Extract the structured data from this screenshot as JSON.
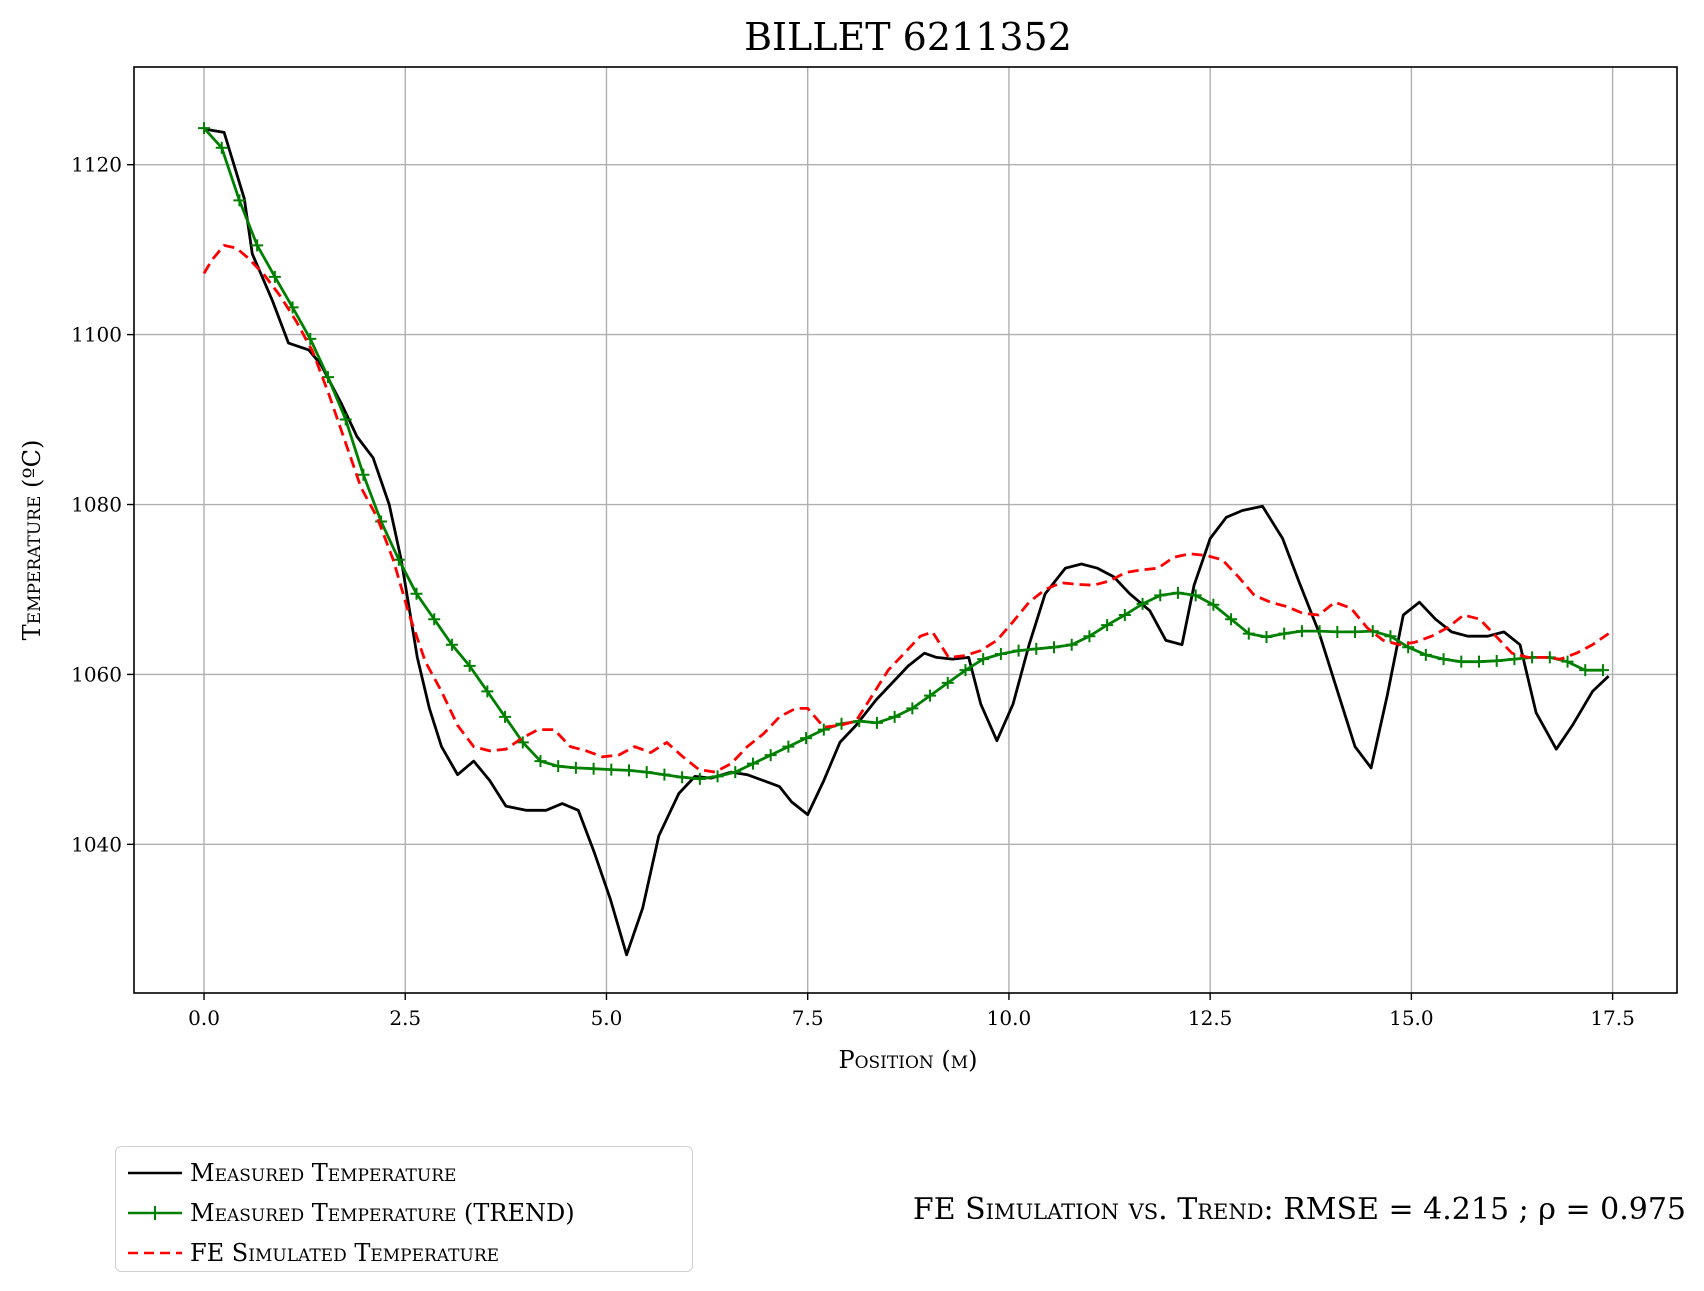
{
  "title": "BILLET 6211352",
  "xlabel": "Position (m)",
  "ylabel": "Temperature (ºC)",
  "stats": {
    "prefix": "FE Simulation vs. Trend:",
    "rmse": "RMSE = 4.215",
    "rho": "; ρ = 0.975"
  },
  "legend": [
    {
      "label": "Measured Temperature",
      "color": "#000000",
      "style": "solid"
    },
    {
      "label": "Measured Temperature (TREND)",
      "color": "#008000",
      "style": "solid-plus"
    },
    {
      "label": "FE Simulated Temperature",
      "color": "#ff0000",
      "style": "dashed"
    }
  ],
  "chart_data": {
    "type": "line",
    "title": "BILLET 6211352",
    "xlabel": "Position (m)",
    "ylabel": "Temperature (ºC)",
    "xlim": [
      -0.87,
      18.3
    ],
    "ylim": [
      1022.5,
      1131.5
    ],
    "xticks": [
      0.0,
      2.5,
      5.0,
      7.5,
      10.0,
      12.5,
      15.0,
      17.5
    ],
    "xtick_labels": [
      "0.0",
      "2.5",
      "5.0",
      "7.5",
      "10.0",
      "12.5",
      "15.0",
      "17.5"
    ],
    "yticks": [
      1040,
      1060,
      1080,
      1100,
      1120
    ],
    "ytick_labels": [
      "1040",
      "1060",
      "1080",
      "1100",
      "1120"
    ],
    "grid": true,
    "legend_position": "below-left",
    "series": [
      {
        "name": "Measured Temperature",
        "color": "#000000",
        "style": "solid",
        "x": [
          0.0,
          0.25,
          0.5,
          0.6,
          0.85,
          1.05,
          1.3,
          1.45,
          1.7,
          1.9,
          2.1,
          2.3,
          2.45,
          2.65,
          2.8,
          2.95,
          3.15,
          3.35,
          3.55,
          3.75,
          4.0,
          4.25,
          4.45,
          4.65,
          4.85,
          5.05,
          5.25,
          5.45,
          5.65,
          5.9,
          6.1,
          6.3,
          6.55,
          6.75,
          6.95,
          7.15,
          7.3,
          7.5,
          7.7,
          7.9,
          8.1,
          8.35,
          8.55,
          8.75,
          8.95,
          9.1,
          9.3,
          9.5,
          9.65,
          9.85,
          10.05,
          10.25,
          10.45,
          10.7,
          10.9,
          11.1,
          11.3,
          11.5,
          11.75,
          11.95,
          12.15,
          12.3,
          12.5,
          12.7,
          12.9,
          13.15,
          13.4,
          13.6,
          13.85,
          14.05,
          14.3,
          14.5,
          14.7,
          14.9,
          15.1,
          15.3,
          15.5,
          15.7,
          15.95,
          16.15,
          16.35,
          16.55,
          16.8,
          17.0,
          17.25,
          17.45
        ],
        "y": [
          1124.2,
          1123.8,
          1116.0,
          1109.5,
          1104.0,
          1099.0,
          1098.2,
          1096.5,
          1092.0,
          1088.0,
          1085.5,
          1080.0,
          1073.5,
          1062.0,
          1056.0,
          1051.5,
          1048.2,
          1049.8,
          1047.5,
          1044.5,
          1044.0,
          1044.0,
          1044.8,
          1044.0,
          1039.0,
          1033.5,
          1027.0,
          1032.5,
          1041.0,
          1046.0,
          1048.0,
          1047.8,
          1048.5,
          1048.2,
          1047.5,
          1046.8,
          1045.0,
          1043.5,
          1047.5,
          1052.0,
          1054.0,
          1057.0,
          1059.0,
          1061.0,
          1062.5,
          1062.0,
          1061.8,
          1062.0,
          1056.5,
          1052.2,
          1056.5,
          1063.5,
          1069.5,
          1072.5,
          1073.0,
          1072.5,
          1071.5,
          1069.5,
          1067.5,
          1064.0,
          1063.5,
          1070.5,
          1076.0,
          1078.5,
          1079.3,
          1079.8,
          1076.0,
          1071.0,
          1065.0,
          1059.0,
          1051.5,
          1049.0,
          1057.5,
          1067.0,
          1068.5,
          1066.5,
          1065.0,
          1064.5,
          1064.5,
          1065.0,
          1063.5,
          1055.5,
          1051.2,
          1054.0,
          1058.0,
          1059.8
        ]
      },
      {
        "name": "Measured Temperature (TREND)",
        "color": "#008000",
        "style": "solid-plus",
        "x": [
          0.0,
          0.22,
          0.44,
          0.66,
          0.88,
          1.1,
          1.32,
          1.54,
          1.76,
          1.98,
          2.2,
          2.42,
          2.64,
          2.86,
          3.08,
          3.3,
          3.52,
          3.74,
          3.96,
          4.18,
          4.4,
          4.62,
          4.84,
          5.06,
          5.28,
          5.5,
          5.72,
          5.94,
          6.16,
          6.38,
          6.6,
          6.82,
          7.04,
          7.26,
          7.48,
          7.7,
          7.92,
          8.14,
          8.36,
          8.58,
          8.8,
          9.02,
          9.24,
          9.46,
          9.68,
          9.9,
          10.12,
          10.34,
          10.56,
          10.78,
          11.0,
          11.22,
          11.44,
          11.66,
          11.88,
          12.1,
          12.32,
          12.54,
          12.76,
          12.98,
          13.2,
          13.42,
          13.64,
          13.86,
          14.08,
          14.3,
          14.52,
          14.74,
          14.96,
          15.18,
          15.4,
          15.62,
          15.84,
          16.06,
          16.28,
          16.5,
          16.72,
          16.94,
          17.16,
          17.38
        ],
        "y": [
          1124.3,
          1122.0,
          1115.8,
          1110.5,
          1106.8,
          1103.2,
          1099.5,
          1095.0,
          1090.0,
          1083.5,
          1078.0,
          1073.5,
          1069.5,
          1066.5,
          1063.5,
          1061.0,
          1058.0,
          1055.0,
          1052.0,
          1049.8,
          1049.2,
          1049.0,
          1048.9,
          1048.8,
          1048.7,
          1048.5,
          1048.2,
          1047.9,
          1047.7,
          1048.0,
          1048.5,
          1049.5,
          1050.5,
          1051.5,
          1052.5,
          1053.5,
          1054.2,
          1054.5,
          1054.3,
          1055.0,
          1056.0,
          1057.5,
          1059.0,
          1060.5,
          1061.8,
          1062.4,
          1062.8,
          1063.0,
          1063.2,
          1063.5,
          1064.5,
          1065.8,
          1067.0,
          1068.3,
          1069.3,
          1069.6,
          1069.3,
          1068.2,
          1066.5,
          1064.8,
          1064.4,
          1064.8,
          1065.1,
          1065.1,
          1065.0,
          1065.0,
          1065.1,
          1064.5,
          1063.2,
          1062.3,
          1061.8,
          1061.5,
          1061.5,
          1061.6,
          1061.8,
          1062.0,
          1062.0,
          1061.5,
          1060.5,
          1060.5
        ]
      },
      {
        "name": "FE Simulated Temperature",
        "color": "#ff0000",
        "style": "dashed",
        "x": [
          0.0,
          0.1,
          0.25,
          0.4,
          0.55,
          0.75,
          0.95,
          1.15,
          1.35,
          1.55,
          1.75,
          1.95,
          2.15,
          2.35,
          2.55,
          2.75,
          2.95,
          3.15,
          3.35,
          3.55,
          3.75,
          3.95,
          4.15,
          4.35,
          4.55,
          4.75,
          4.95,
          5.15,
          5.35,
          5.55,
          5.75,
          5.95,
          6.15,
          6.35,
          6.55,
          6.75,
          6.95,
          7.15,
          7.35,
          7.5,
          7.7,
          7.9,
          8.1,
          8.3,
          8.5,
          8.7,
          8.9,
          9.05,
          9.25,
          9.45,
          9.65,
          9.85,
          10.05,
          10.25,
          10.45,
          10.65,
          10.85,
          11.05,
          11.25,
          11.45,
          11.65,
          11.85,
          12.05,
          12.25,
          12.45,
          12.65,
          12.85,
          13.05,
          13.25,
          13.45,
          13.65,
          13.85,
          14.05,
          14.25,
          14.45,
          14.65,
          14.85,
          15.05,
          15.25,
          15.45,
          15.65,
          15.85,
          16.05,
          16.25,
          16.45,
          16.65,
          16.85,
          17.05,
          17.25,
          17.45
        ],
        "y": [
          1107.2,
          1108.8,
          1110.5,
          1110.2,
          1109.0,
          1107.0,
          1104.5,
          1101.5,
          1098.0,
          1093.0,
          1087.5,
          1082.0,
          1078.5,
          1073.5,
          1067.0,
          1061.5,
          1058.0,
          1054.0,
          1051.5,
          1051.0,
          1051.2,
          1052.5,
          1053.5,
          1053.5,
          1051.5,
          1051.0,
          1050.3,
          1050.5,
          1051.5,
          1050.8,
          1052.0,
          1050.3,
          1048.8,
          1048.5,
          1049.5,
          1051.5,
          1053.0,
          1055.0,
          1056.0,
          1056.0,
          1053.8,
          1054.0,
          1054.5,
          1057.5,
          1060.5,
          1062.5,
          1064.5,
          1065.0,
          1062.0,
          1062.2,
          1062.8,
          1064.0,
          1066.2,
          1068.5,
          1070.0,
          1070.8,
          1070.6,
          1070.5,
          1071.0,
          1072.0,
          1072.3,
          1072.5,
          1073.8,
          1074.2,
          1074.0,
          1073.5,
          1071.5,
          1069.3,
          1068.5,
          1068.0,
          1067.2,
          1067.0,
          1068.5,
          1067.8,
          1065.5,
          1064.0,
          1063.5,
          1063.8,
          1064.5,
          1065.5,
          1067.0,
          1066.5,
          1064.5,
          1062.5,
          1062.0,
          1062.0,
          1061.8,
          1062.5,
          1063.5,
          1064.8
        ]
      }
    ]
  }
}
